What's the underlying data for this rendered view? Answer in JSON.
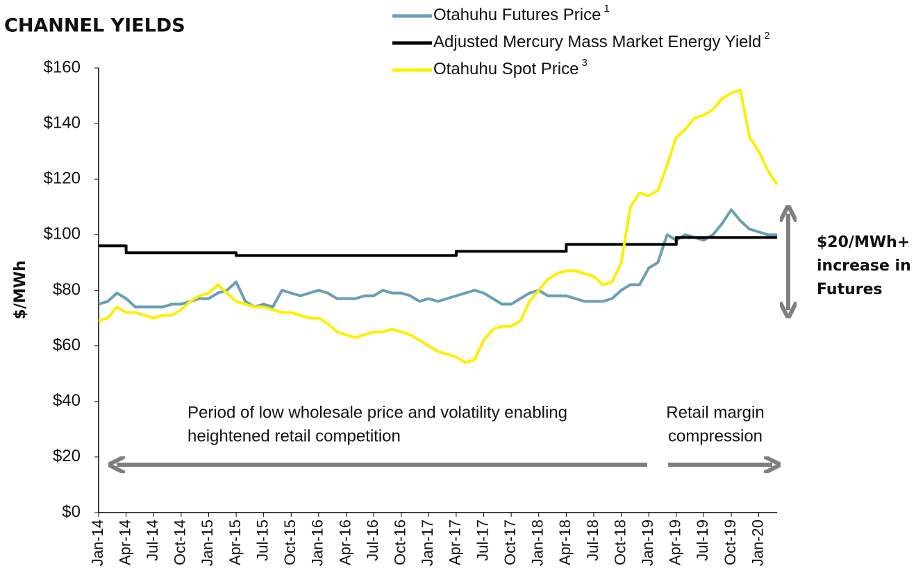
{
  "chart_data": {
    "type": "line",
    "title": "CHANNEL YIELDS",
    "y_label": "$/MWh",
    "x": [
      0,
      1,
      2,
      3,
      4,
      5,
      6,
      7,
      8,
      9,
      10,
      11,
      12,
      13,
      14,
      15,
      16,
      17,
      18,
      19,
      20,
      21,
      22,
      23,
      24,
      25,
      26,
      27,
      28,
      29,
      30,
      31,
      32,
      33,
      34,
      35,
      36,
      37,
      38,
      39,
      40,
      41,
      42,
      43,
      44,
      45,
      46,
      47,
      48,
      49,
      50,
      51,
      52,
      53,
      54,
      55,
      56,
      57,
      58,
      59,
      60,
      61,
      62,
      63,
      64,
      65,
      66,
      67,
      68,
      69,
      70,
      71,
      72,
      73,
      74
    ],
    "xlim": [
      0,
      74
    ],
    "xticks": [
      {
        "value": 0,
        "label": "Jan-14"
      },
      {
        "value": 3,
        "label": "Apr-14"
      },
      {
        "value": 6,
        "label": "Jul-14"
      },
      {
        "value": 9,
        "label": "Oct-14"
      },
      {
        "value": 12,
        "label": "Jan-15"
      },
      {
        "value": 15,
        "label": "Apr-15"
      },
      {
        "value": 18,
        "label": "Jul-15"
      },
      {
        "value": 21,
        "label": "Oct-15"
      },
      {
        "value": 24,
        "label": "Jan-16"
      },
      {
        "value": 27,
        "label": "Apr-16"
      },
      {
        "value": 30,
        "label": "Jul-16"
      },
      {
        "value": 33,
        "label": "Oct-16"
      },
      {
        "value": 36,
        "label": "Jan-17"
      },
      {
        "value": 39,
        "label": "Apr-17"
      },
      {
        "value": 42,
        "label": "Jul-17"
      },
      {
        "value": 45,
        "label": "Oct-17"
      },
      {
        "value": 48,
        "label": "Jan-18"
      },
      {
        "value": 51,
        "label": "Apr-18"
      },
      {
        "value": 54,
        "label": "Jul-18"
      },
      {
        "value": 57,
        "label": "Oct-18"
      },
      {
        "value": 60,
        "label": "Jan-19"
      },
      {
        "value": 63,
        "label": "Apr-19"
      },
      {
        "value": 66,
        "label": "Jul-19"
      },
      {
        "value": 69,
        "label": "Oct-19"
      },
      {
        "value": 72,
        "label": "Jan-20"
      }
    ],
    "ylim": [
      0,
      160
    ],
    "yticks": [
      {
        "value": 0,
        "label": "$0"
      },
      {
        "value": 20,
        "label": "$20"
      },
      {
        "value": 40,
        "label": "$40"
      },
      {
        "value": 60,
        "label": "$60"
      },
      {
        "value": 80,
        "label": "$80"
      },
      {
        "value": 100,
        "label": "$100"
      },
      {
        "value": 120,
        "label": "$120"
      },
      {
        "value": 140,
        "label": "$140"
      },
      {
        "value": 160,
        "label": "$160"
      }
    ],
    "grid": false,
    "series": [
      {
        "name": "Otahuhu Futures Price",
        "footnote": "1",
        "color": "#6a9fb5",
        "step": false,
        "values": [
          75,
          76,
          79,
          77,
          74,
          74,
          74,
          74,
          75,
          75,
          76,
          77,
          77,
          79,
          80,
          83,
          76,
          74,
          75,
          74,
          80,
          79,
          78,
          79,
          80,
          79,
          77,
          77,
          77,
          78,
          78,
          80,
          79,
          79,
          78,
          76,
          77,
          76,
          77,
          78,
          79,
          80,
          79,
          77,
          75,
          75,
          77,
          79,
          80,
          78,
          78,
          78,
          77,
          76,
          76,
          76,
          77,
          80,
          82,
          82,
          88,
          90,
          100,
          98,
          100,
          99,
          98,
          100,
          104,
          109,
          105,
          102,
          101,
          100,
          100
        ]
      },
      {
        "name": "Adjusted Mercury Mass Market Energy Yield",
        "footnote": "2",
        "color": "#000000",
        "step": true,
        "values": [
          96,
          96,
          96,
          93.5,
          93.5,
          93.5,
          93.5,
          93.5,
          93.5,
          93.5,
          93.5,
          93.5,
          93.5,
          93.5,
          93.5,
          92.5,
          92.5,
          92.5,
          92.5,
          92.5,
          92.5,
          92.5,
          92.5,
          92.5,
          92.5,
          92.5,
          92.5,
          92.5,
          92.5,
          92.5,
          92.5,
          92.5,
          92.5,
          92.5,
          92.5,
          92.5,
          92.5,
          92.5,
          92.5,
          94,
          94,
          94,
          94,
          94,
          94,
          94,
          94,
          94,
          94,
          94,
          94,
          96.5,
          96.5,
          96.5,
          96.5,
          96.5,
          96.5,
          96.5,
          96.5,
          96.5,
          96.5,
          96.5,
          96.5,
          99,
          99,
          99,
          99,
          99,
          99,
          99,
          99,
          99,
          99,
          99,
          99
        ]
      },
      {
        "name": "Otahuhu Spot Price",
        "footnote": "3",
        "color": "#ffee00",
        "step": false,
        "values": [
          69,
          70,
          74,
          72,
          72,
          71,
          70,
          71,
          71,
          73,
          76,
          78,
          79,
          82,
          79,
          76,
          75,
          74,
          74,
          73,
          72,
          72,
          71,
          70,
          70,
          68,
          65,
          64,
          63,
          64,
          65,
          65,
          66,
          65,
          64,
          62,
          60,
          58,
          57,
          56,
          54,
          55,
          62,
          66,
          67,
          67,
          69,
          76,
          80,
          84,
          86,
          87,
          87,
          86,
          85,
          82,
          83,
          90,
          110,
          115,
          114,
          116,
          125,
          135,
          138,
          142,
          143,
          145,
          149,
          151,
          152,
          135,
          130,
          123,
          118
        ]
      }
    ],
    "annotations": [
      {
        "lines": [
          "Period of low wholesale price and volatility enabling",
          "heightened retail competition"
        ]
      },
      {
        "lines": [
          "Retail margin",
          "compression"
        ]
      },
      {
        "lines": [
          "$20/MWh+",
          "increase in",
          "Futures"
        ]
      }
    ]
  }
}
